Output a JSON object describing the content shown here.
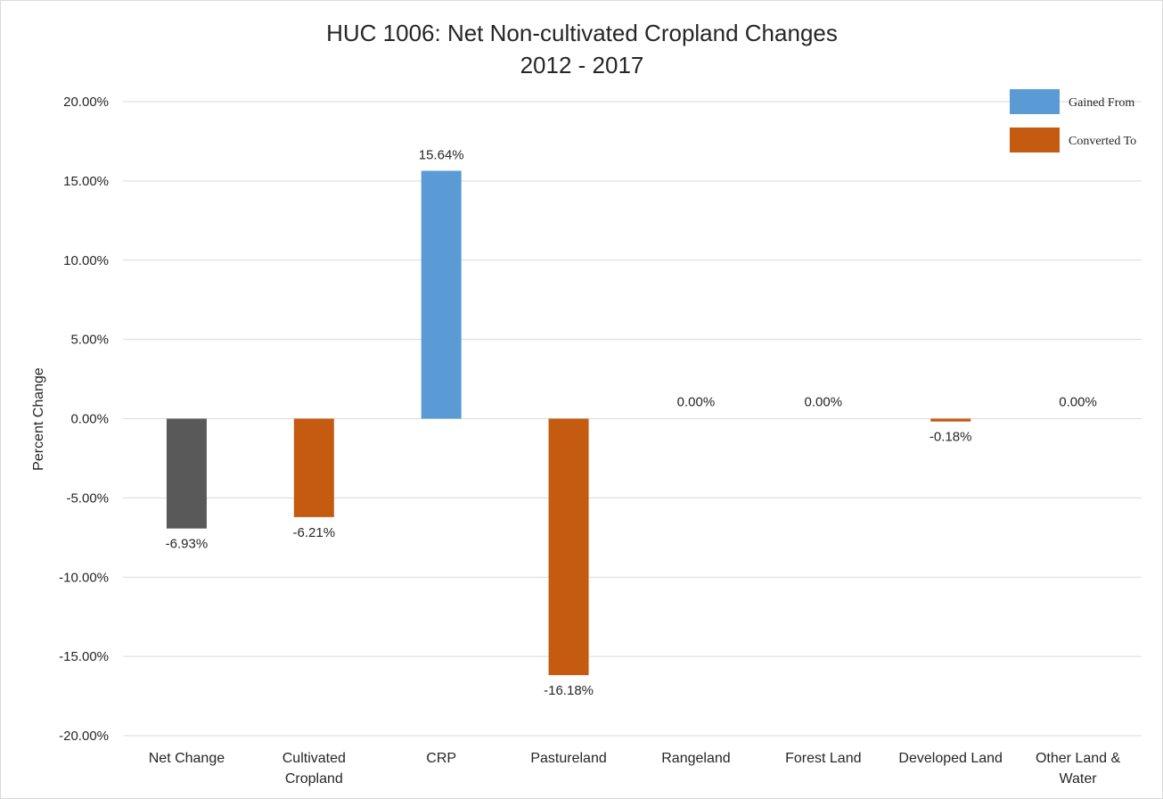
{
  "chart_data": {
    "type": "bar",
    "title": "HUC 1006: Net Non-cultivated Cropland Changes",
    "subtitle": "2012 - 2017",
    "ylabel": "Percent Change",
    "xlabel": "",
    "ylim": [
      -20,
      20
    ],
    "yticks": [
      20,
      15,
      10,
      5,
      0,
      -5,
      -10,
      -15,
      -20
    ],
    "ytick_labels": [
      "20.00%",
      "15.00%",
      "10.00%",
      "5.00%",
      "0.00%",
      "-5.00%",
      "-10.00%",
      "-15.00%",
      "-20.00%"
    ],
    "grid": true,
    "legend_position": "top-right",
    "legend": [
      {
        "name": "Gained From",
        "color": "#5b9bd5"
      },
      {
        "name": "Converted To",
        "color": "#c55a11"
      }
    ],
    "categories": [
      [
        "Net Change"
      ],
      [
        "Cultivated",
        "Cropland"
      ],
      [
        "CRP"
      ],
      [
        "Pastureland"
      ],
      [
        "Rangeland"
      ],
      [
        "Forest Land"
      ],
      [
        "Developed Land"
      ],
      [
        "Other Land &",
        "Water"
      ]
    ],
    "values": [
      -6.93,
      -6.21,
      15.64,
      -16.18,
      0.0,
      0.0,
      -0.18,
      0.0
    ],
    "data_labels": [
      "-6.93%",
      "-6.21%",
      "15.64%",
      "-16.18%",
      "0.00%",
      "0.00%",
      "-0.18%",
      "0.00%"
    ],
    "bar_colors": [
      "#595959",
      "#c55a11",
      "#5b9bd5",
      "#c55a11",
      "#c55a11",
      "#c55a11",
      "#c55a11",
      "#c55a11"
    ]
  }
}
